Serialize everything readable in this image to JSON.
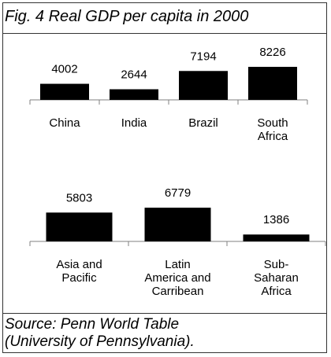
{
  "title": "Fig. 4 Real GDP per capita in 2000",
  "source_line1": "Source: Penn World Table",
  "source_line2": "(University of Pennsylvania).",
  "colors": {
    "bar": "#000000",
    "axis": "#808080",
    "text": "#000000"
  },
  "chart_data": [
    {
      "type": "bar",
      "categories": [
        [
          "China"
        ],
        [
          "India"
        ],
        [
          "Brazil"
        ],
        [
          "South",
          "Africa"
        ]
      ],
      "values": [
        4002,
        2644,
        7194,
        8226
      ],
      "data_labels": [
        "4002",
        "2644",
        "7194",
        "8226"
      ],
      "title": "",
      "xlabel": "",
      "ylabel": "",
      "ylim": [
        0,
        8226
      ],
      "grid": false
    },
    {
      "type": "bar",
      "categories": [
        [
          "Asia and",
          "Pacific"
        ],
        [
          "Latin",
          "America and",
          "Carribean"
        ],
        [
          "Sub-",
          "Saharan",
          "Africa"
        ]
      ],
      "values": [
        5803,
        6779,
        1386
      ],
      "data_labels": [
        "5803",
        "6779",
        "1386"
      ],
      "title": "",
      "xlabel": "",
      "ylabel": "",
      "ylim": [
        0,
        8226
      ],
      "grid": false
    }
  ]
}
